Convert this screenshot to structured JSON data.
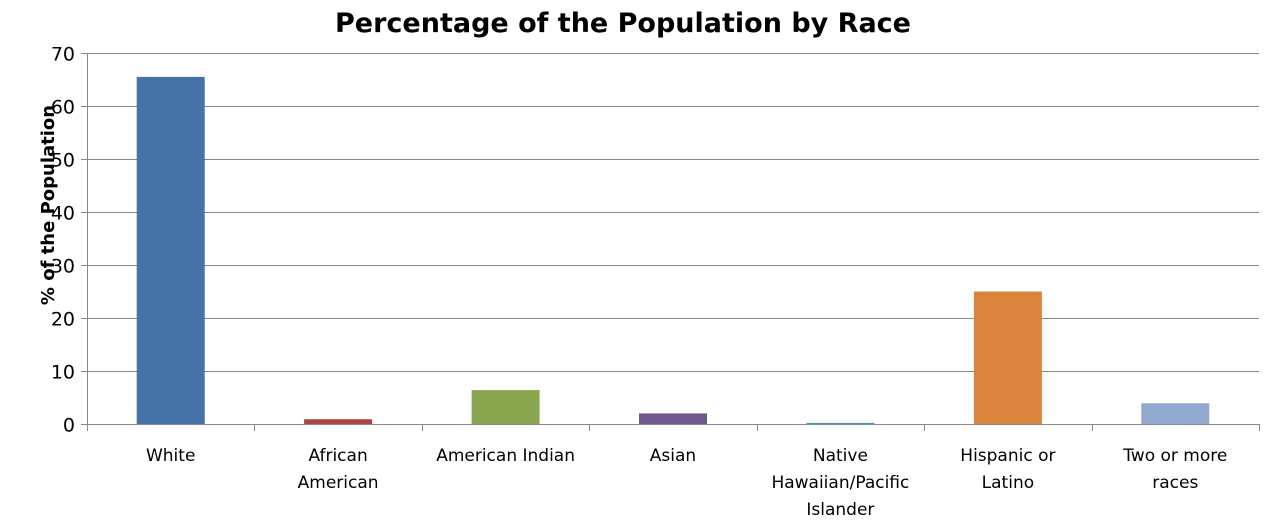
{
  "chart_data": {
    "type": "bar",
    "title": "Percentage of the Population by Race",
    "ylabel": "% of the Population",
    "xlabel": "",
    "ylim": [
      0,
      70
    ],
    "yticks": [
      0,
      10,
      20,
      30,
      40,
      50,
      60,
      70
    ],
    "grid": true,
    "legend": "none",
    "categories": [
      [
        "White"
      ],
      [
        "African",
        "American"
      ],
      [
        "American Indian"
      ],
      [
        "Asian"
      ],
      [
        "Native",
        "Hawaiian/Pacific",
        "Islander"
      ],
      [
        "Hispanic or",
        "Latino"
      ],
      [
        "Two or more",
        "races"
      ]
    ],
    "values": [
      65.5,
      0.9,
      6.4,
      2.0,
      0.2,
      25.0,
      3.9
    ],
    "colors": [
      "#4572a7",
      "#aa4643",
      "#89a54e",
      "#71588f",
      "#4198af",
      "#db843d",
      "#93a9cf"
    ]
  }
}
